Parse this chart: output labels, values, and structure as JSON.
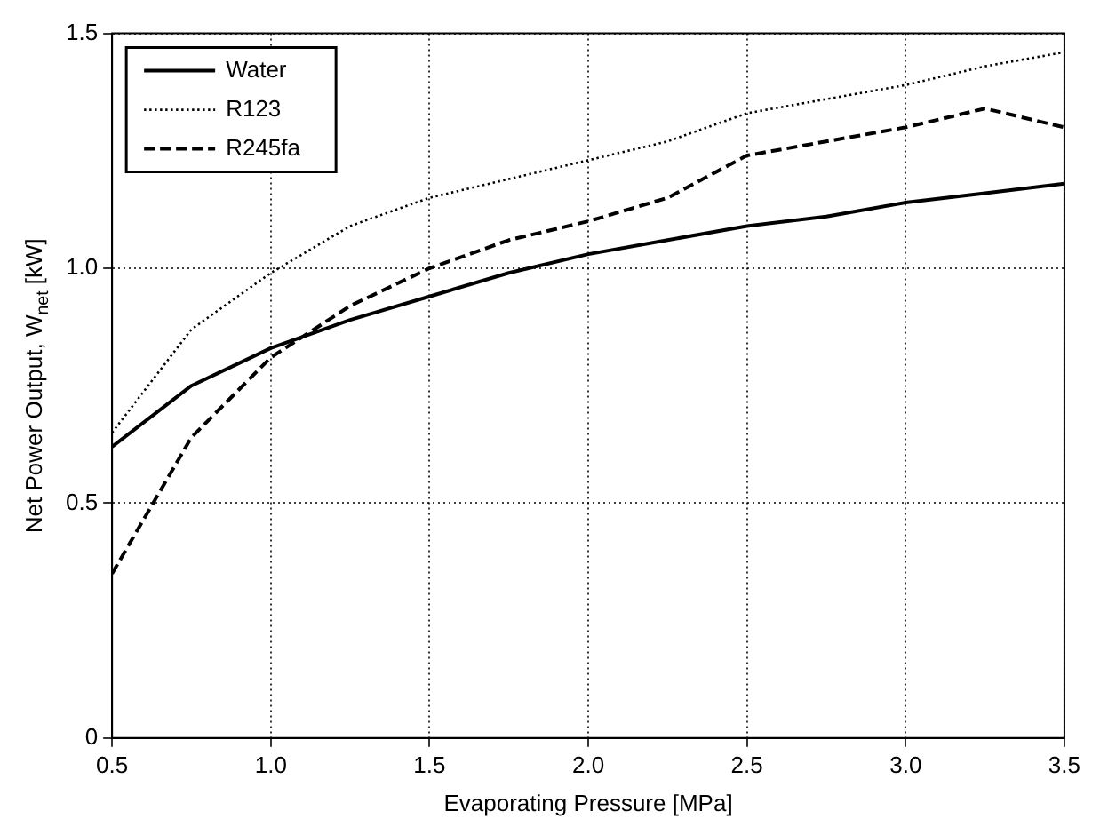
{
  "chart_data": {
    "type": "line",
    "xlabel": "Evaporating Pressure [MPa]",
    "ylabel": "Net Power Output, W$_{net}$ [kW]",
    "x": [
      0.5,
      0.75,
      1.0,
      1.25,
      1.5,
      1.75,
      2.0,
      2.25,
      2.5,
      2.75,
      3.0,
      3.25,
      3.5
    ],
    "series": [
      {
        "name": "Water",
        "color": "#000000",
        "line_style": "solid",
        "values": [
          0.62,
          0.75,
          0.83,
          0.89,
          0.94,
          0.99,
          1.03,
          1.06,
          1.09,
          1.11,
          1.14,
          1.16,
          1.18
        ]
      },
      {
        "name": "R123",
        "color": "#000000",
        "line_style": "dotted",
        "values": [
          0.65,
          0.87,
          0.99,
          1.09,
          1.15,
          1.19,
          1.23,
          1.27,
          1.33,
          1.36,
          1.39,
          1.43,
          1.46
        ]
      },
      {
        "name": "R245fa",
        "color": "#000000",
        "line_style": "dashed",
        "values": [
          0.35,
          0.64,
          0.81,
          0.92,
          1.0,
          1.06,
          1.1,
          1.15,
          1.24,
          1.27,
          1.3,
          1.34,
          1.3
        ]
      }
    ],
    "xlim": [
      0.5,
      3.5
    ],
    "xticks": [
      0.5,
      {
        "value": 1,
        "label": "1.0"
      },
      1.5,
      {
        "value": 2,
        "label": "2.0"
      },
      2.5,
      {
        "value": 3,
        "label": "3.0"
      },
      3.5
    ],
    "ylim": [
      0,
      1.5
    ],
    "yticks": [
      0,
      0.5,
      {
        "value": 1,
        "label": "1.0"
      },
      1.5
    ],
    "grid": true,
    "legend": "top left",
    "marker": "none"
  }
}
